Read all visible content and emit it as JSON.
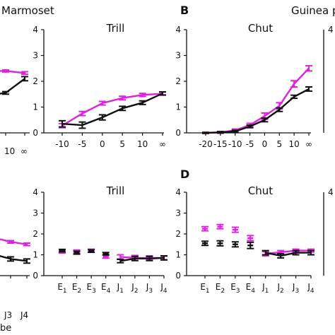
{
  "figure": {
    "header_left": "Marmoset",
    "header_right": "Guinea p",
    "letters": {
      "b": "B",
      "d": "D"
    },
    "partial_labels": {
      "top_left_x_ticks": [
        "10",
        "∞"
      ],
      "bottom_left_x_ticks": [
        "J3",
        "J4"
      ],
      "bottom_left_axis": "be"
    }
  },
  "colors": {
    "condition_a": "#e020e0",
    "condition_b": "#111111",
    "axis": "#111111"
  },
  "chart_data": [
    {
      "id": "marmoset-trill-top",
      "type": "line",
      "title": "Trill",
      "x": [
        "-10",
        "-5",
        "0",
        "5",
        "10",
        "∞"
      ],
      "ylim": [
        0,
        4
      ],
      "yticks": [
        "0",
        "1",
        "2",
        "3",
        "4"
      ],
      "series": [
        {
          "color": "#e020e0",
          "values": [
            0.28,
            0.75,
            1.15,
            1.35,
            1.47,
            1.52
          ],
          "errors": [
            0.08,
            0.08,
            0.07,
            0.07,
            0.06,
            0.06
          ]
        },
        {
          "color": "#111111",
          "values": [
            0.35,
            0.3,
            0.6,
            0.95,
            1.17,
            1.53
          ],
          "errors": [
            0.12,
            0.12,
            0.1,
            0.08,
            0.07,
            0.06
          ]
        }
      ]
    },
    {
      "id": "guinea-pig-chut-top",
      "type": "line",
      "title": "Chut",
      "x": [
        "-20",
        "-15",
        "-10",
        "-5",
        "0",
        "5",
        "10",
        "∞"
      ],
      "ylim": [
        0,
        4
      ],
      "yticks": [
        "0",
        "1",
        "2",
        "3",
        "4"
      ],
      "series": [
        {
          "color": "#e020e0",
          "values": [
            0.0,
            0.02,
            0.1,
            0.3,
            0.65,
            1.05,
            1.9,
            2.5
          ],
          "errors": [
            0.02,
            0.03,
            0.05,
            0.07,
            0.12,
            0.12,
            0.12,
            0.1
          ]
        },
        {
          "color": "#111111",
          "values": [
            0.0,
            0.02,
            0.06,
            0.25,
            0.5,
            0.9,
            1.4,
            1.7
          ],
          "errors": [
            0.02,
            0.03,
            0.04,
            0.05,
            0.07,
            0.07,
            0.06,
            0.08
          ]
        }
      ]
    },
    {
      "id": "marmoset-left-top-partial",
      "type": "line",
      "x": [
        "5",
        "10",
        "∞"
      ],
      "ylim": [
        0,
        4
      ],
      "series": [
        {
          "color": "#e020e0",
          "values": [
            2.4,
            2.4,
            2.32
          ],
          "errors": [
            0.04,
            0.04,
            0.05
          ]
        },
        {
          "color": "#111111",
          "values": [
            1.4,
            1.55,
            2.1
          ],
          "errors": [
            0.05,
            0.05,
            0.08
          ]
        }
      ]
    },
    {
      "id": "marmoset-trill-bottom",
      "type": "line",
      "title": "Trill",
      "x": [
        "E1",
        "E2",
        "E3",
        "E4",
        "J1",
        "J2",
        "J3",
        "J4"
      ],
      "x_groups": [
        2,
        2,
        2
      ],
      "ylim": [
        0,
        4
      ],
      "yticks": [
        "0",
        "1",
        "2",
        "3",
        "4"
      ],
      "series": [
        {
          "color": "#e020e0",
          "connected_from": 4,
          "values": [
            1.15,
            1.15,
            1.2,
            0.92,
            0.9,
            0.85,
            0.85,
            0.85
          ],
          "errors": [
            0.07,
            0.08,
            0.07,
            0.08,
            0.1,
            0.12,
            0.1,
            0.08
          ]
        },
        {
          "color": "#111111",
          "connected_from": 4,
          "values": [
            1.2,
            1.1,
            1.18,
            1.05,
            0.7,
            0.82,
            0.82,
            0.85
          ],
          "errors": [
            0.06,
            0.07,
            0.06,
            0.06,
            0.08,
            0.1,
            0.1,
            0.1
          ]
        }
      ]
    },
    {
      "id": "guinea-pig-chut-bottom",
      "type": "line",
      "title": "Chut",
      "x": [
        "E1",
        "E2",
        "E3",
        "E4",
        "J1",
        "J2",
        "J3",
        "J4"
      ],
      "ylim": [
        0,
        4
      ],
      "yticks": [
        "0",
        "1",
        "2",
        "3",
        "4"
      ],
      "series": [
        {
          "color": "#e020e0",
          "connected_from": 4,
          "values": [
            2.25,
            2.35,
            2.2,
            1.8,
            1.05,
            1.12,
            1.2,
            1.2
          ],
          "errors": [
            0.1,
            0.1,
            0.12,
            0.12,
            0.1,
            0.08,
            0.07,
            0.07
          ]
        },
        {
          "color": "#111111",
          "connected_from": 4,
          "values": [
            1.55,
            1.55,
            1.5,
            1.45,
            1.1,
            0.95,
            1.1,
            1.1
          ],
          "errors": [
            0.1,
            0.12,
            0.12,
            0.15,
            0.1,
            0.1,
            0.1,
            0.1
          ]
        }
      ]
    },
    {
      "id": "marmoset-left-bottom-partial",
      "type": "line",
      "x": [
        "J2",
        "J3",
        "J4"
      ],
      "ylim": [
        0,
        4
      ],
      "series": [
        {
          "color": "#e020e0",
          "values": [
            1.85,
            1.62,
            1.5
          ],
          "errors": [
            0.06,
            0.06,
            0.06
          ]
        },
        {
          "color": "#111111",
          "values": [
            1.05,
            0.8,
            0.7
          ],
          "errors": [
            0.1,
            0.1,
            0.1
          ]
        }
      ]
    }
  ]
}
